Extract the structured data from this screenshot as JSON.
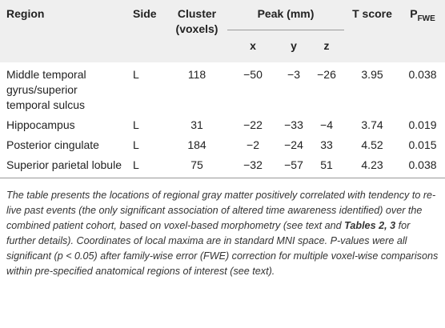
{
  "table": {
    "header": {
      "region": "Region",
      "side": "Side",
      "cluster": "Cluster (voxels)",
      "peak": "Peak (mm)",
      "x": "x",
      "y": "y",
      "z": "z",
      "tscore": "T score",
      "p": "P",
      "p_sub": "FWE"
    },
    "rows": [
      [
        "Middle temporal gyrus/superior temporal sulcus",
        "L",
        "118",
        "−50",
        "−3",
        "−26",
        "3.95",
        "0.038"
      ],
      [
        "Hippocampus",
        "L",
        "31",
        "−22",
        "−33",
        "−4",
        "3.74",
        "0.019"
      ],
      [
        "Posterior cingulate",
        "L",
        "184",
        "−2",
        "−24",
        "33",
        "4.52",
        "0.015"
      ],
      [
        "Superior parietal lobule",
        "L",
        "75",
        "−32",
        "−57",
        "51",
        "4.23",
        "0.038"
      ]
    ]
  },
  "caption": {
    "part1": "The table presents the locations of regional gray matter positively correlated with tendency to re-live past events (the only significant association of altered time awareness identified) over the combined patient cohort, based on voxel-based morphometry (see text and ",
    "bold": "Tables 2, 3",
    "part2": " for further details). Coordinates of local maxima are in standard MNI space. P-values were all significant (p < 0.05) after family-wise error (FWE) correction for multiple voxel-wise comparisons within pre-specified anatomical regions of interest (see text)."
  }
}
